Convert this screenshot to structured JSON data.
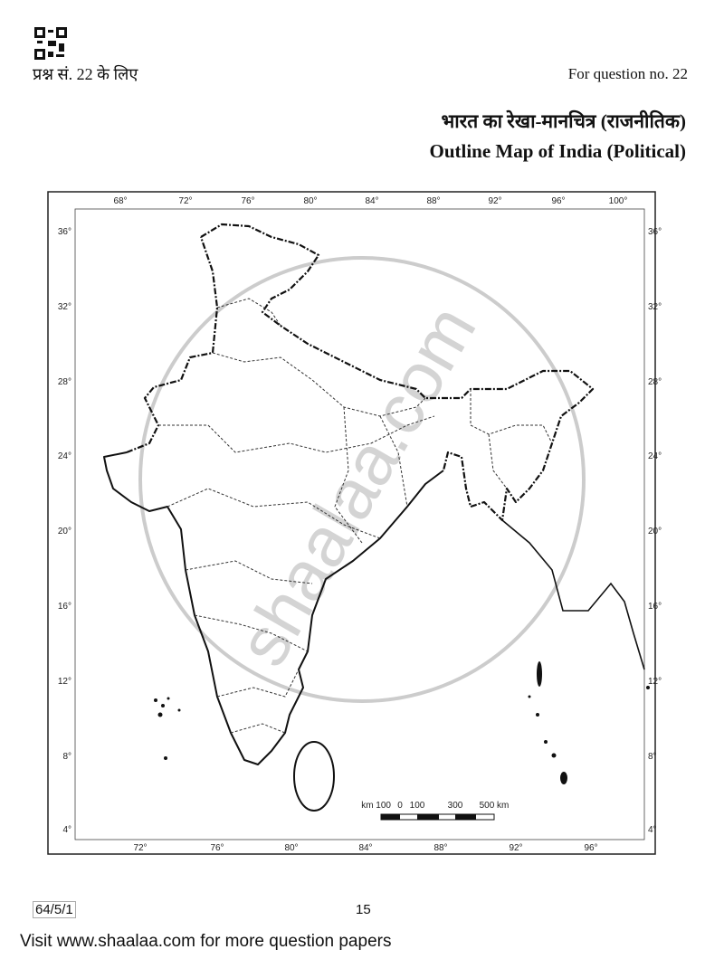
{
  "header": {
    "hindi_question": "प्रश्न सं. 22 के लिए",
    "english_question": "For question no. 22",
    "hindi_title": "भारत का रेखा-मानचित्र (राजनीतिक)",
    "english_title": "Outline Map of India (Political)"
  },
  "map": {
    "top_longitudes": [
      "68°",
      "72°",
      "76°",
      "80°",
      "84°",
      "88°",
      "92°",
      "96°",
      "100°"
    ],
    "bottom_longitudes": [
      "72°",
      "76°",
      "80°",
      "84°",
      "88°",
      "92°",
      "96°"
    ],
    "latitudes": [
      "36°",
      "32°",
      "28°",
      "24°",
      "20°",
      "16°",
      "12°",
      "8°",
      "4°"
    ],
    "scale_labels": [
      "km 100",
      "0",
      "100",
      "300",
      "500 km"
    ],
    "watermark": "shaalaa.com"
  },
  "footer": {
    "code": "64/5/1",
    "page_number": "15",
    "visit_text": "Visit www.shaalaa.com for more question papers"
  }
}
